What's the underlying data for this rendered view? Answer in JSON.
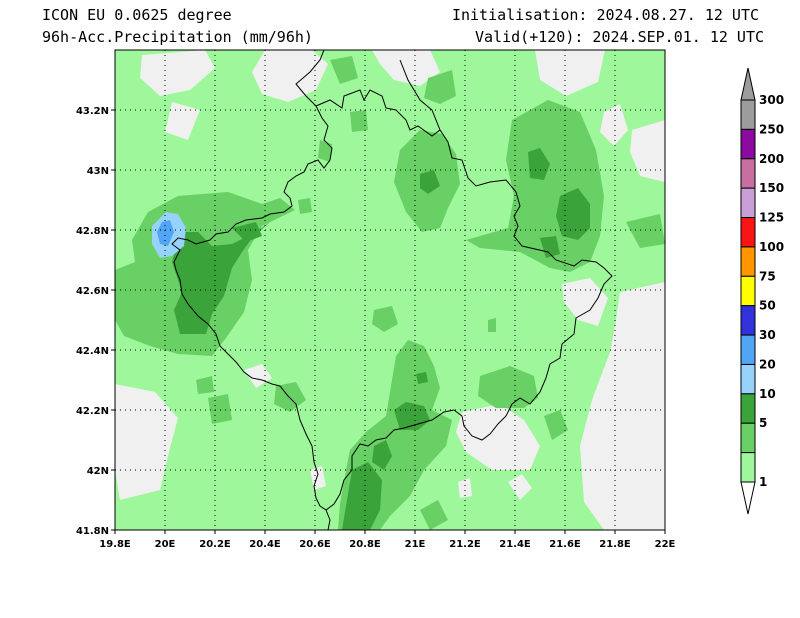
{
  "header": {
    "model": "ICON EU 0.0625 degree",
    "field": "96h-Acc.Precipitation (mm/96h)",
    "init": "Initialisation: 2024.08.27. 12 UTC",
    "valid": "Valid(+120): 2024.SEP.01. 12 UTC"
  },
  "map": {
    "lon_range": [
      19.8,
      22.0
    ],
    "lat_range": [
      41.8,
      43.4
    ],
    "grid": true,
    "lat_ticks": [
      "43.2N",
      "43N",
      "42.8N",
      "42.6N",
      "42.4N",
      "42.2N",
      "42N",
      "41.8N"
    ],
    "lon_ticks": [
      "19.8E",
      "20E",
      "20.2E",
      "20.4E",
      "20.6E",
      "20.8E",
      "21E",
      "21.2E",
      "21.4E",
      "21.6E",
      "21.8E",
      "22E"
    ],
    "colors": {
      "no_precip": "#f0f0f0",
      "c1": "#9ef79a",
      "c5": "#68d064",
      "c10": "#3aa43a",
      "c20": "#96d2fa",
      "c30": "#50a5f5"
    }
  },
  "colorbar": {
    "labels": [
      "300",
      "250",
      "200",
      "150",
      "125",
      "100",
      "75",
      "50",
      "30",
      "20",
      "10",
      "5",
      "1"
    ],
    "colors": [
      "#9c9c9c",
      "#8c0aa0",
      "#c86ea0",
      "#c8a0d7",
      "#fa1414",
      "#ff9600",
      "#ffff00",
      "#3232dc",
      "#50a5f5",
      "#96d2fa",
      "#3aa43a",
      "#68d064",
      "#9ef79a"
    ],
    "top_arrow": "#9c9c9c",
    "bottom_arrow": "#ffffff"
  }
}
